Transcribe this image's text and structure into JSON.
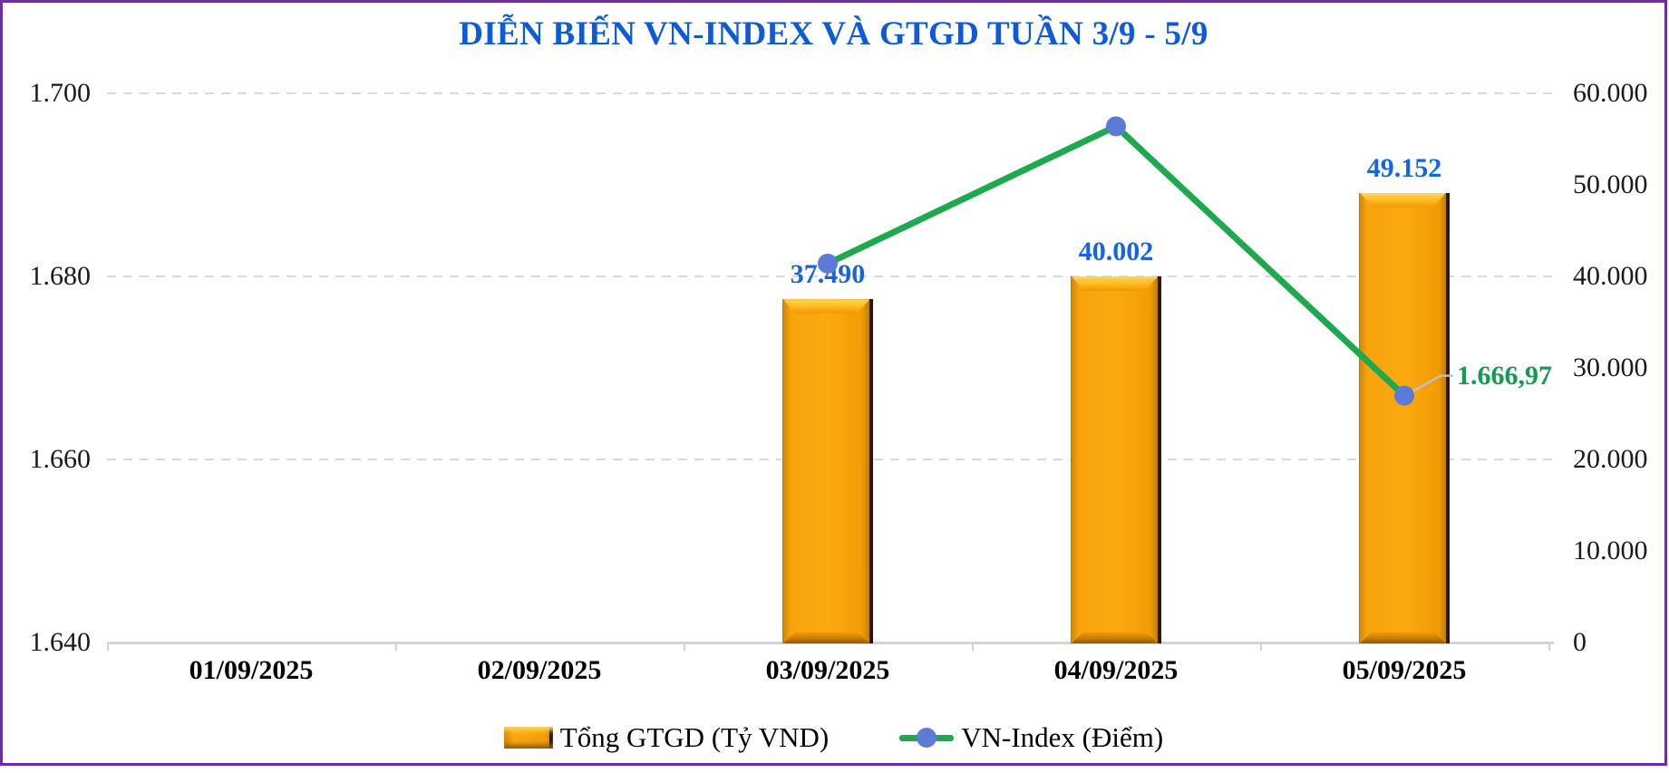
{
  "chart_data": {
    "type": "combo",
    "title": "DIỄN BIẾN VN-INDEX VÀ GTGD TUẦN 3/9 - 5/9",
    "categories": [
      "01/09/2025",
      "02/09/2025",
      "03/09/2025",
      "04/09/2025",
      "05/09/2025"
    ],
    "series": [
      {
        "name": "Tổng GTGD (Tỷ VND)",
        "type": "bar",
        "axis": "right",
        "values": [
          null,
          null,
          37490,
          40002,
          49152
        ],
        "value_labels": [
          null,
          null,
          "37.490",
          "40.002",
          "49.152"
        ]
      },
      {
        "name": "VN-Index (Điểm)",
        "type": "line",
        "axis": "left",
        "values": [
          null,
          null,
          1681.4,
          1696.4,
          1666.97
        ],
        "last_point_label": "1.666,97"
      }
    ],
    "left_axis": {
      "series": "VN-Index (Điểm)",
      "min": 1640,
      "max": 1700,
      "step": 20,
      "tick_labels": [
        "1.700",
        "1.680",
        "1.660",
        "1.640"
      ]
    },
    "right_axis": {
      "series": "Tổng GTGD (Tỷ VND)",
      "min": 0,
      "max": 60000,
      "step": 10000,
      "tick_labels": [
        "60.000",
        "50.000",
        "40.000",
        "30.000",
        "20.000",
        "10.000",
        "0"
      ]
    },
    "legend": [
      {
        "label": "Tổng GTGD (Tỷ VND)",
        "swatch": "orange-beveled-bar"
      },
      {
        "label": "VN-Index (Điểm)",
        "swatch": "green-line-with-blue-dot"
      }
    ],
    "grid": {
      "horizontal_dashed": true,
      "vertical": false
    },
    "legend_position": "bottom"
  },
  "colors": {
    "title_blue": "#0D5BD8",
    "bar_label_blue": "#1565E0",
    "bar_orange": "#FBA40C",
    "bar_edge_dark": "#261700",
    "line_green": "#1EA94E",
    "marker_blue": "#5B7BD6",
    "point_label_green": "#149B52",
    "grid_gray": "#D9D9D9",
    "axis_gray": "#D4D4D4",
    "frame_purple": "#6C2E9C",
    "leader_gray": "#C0C0C0"
  }
}
